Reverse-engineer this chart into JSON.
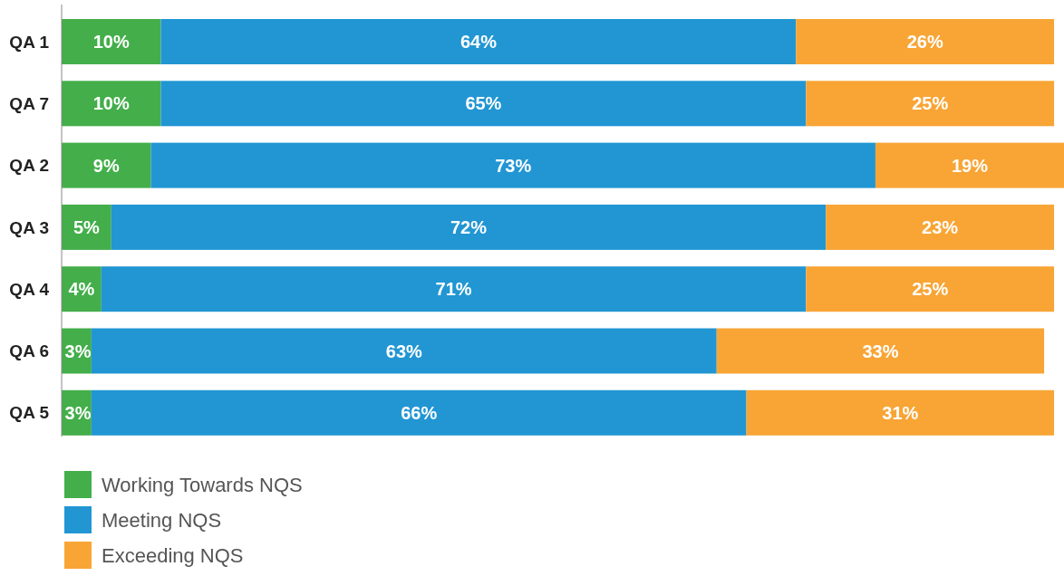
{
  "chart_data": {
    "type": "bar",
    "orientation": "horizontal",
    "stacked": true,
    "legend": "bottom left",
    "categories": [
      "QA 1",
      "QA 7",
      "QA 2",
      "QA 3",
      "QA 4",
      "QA 6",
      "QA 5"
    ],
    "series": [
      {
        "name": "Working Towards NQS",
        "color": "#43ae4a",
        "values": [
          10,
          10,
          9,
          5,
          4,
          3,
          3
        ],
        "value_labels": [
          "10%",
          "10%",
          "9%",
          "5%",
          "4%",
          "3%",
          "3%"
        ]
      },
      {
        "name": "Meeting NQS",
        "color": "#2196d3",
        "values": [
          64,
          65,
          73,
          72,
          71,
          63,
          66
        ],
        "value_labels": [
          "64%",
          "65%",
          "73%",
          "72%",
          "71%",
          "63%",
          "66%"
        ]
      },
      {
        "name": "Exceeding NQS",
        "color": "#f8a535",
        "values": [
          26,
          25,
          19,
          23,
          25,
          33,
          31
        ],
        "value_labels": [
          "26%",
          "25%",
          "19%",
          "23%",
          "25%",
          "33%",
          "31%"
        ]
      }
    ]
  }
}
